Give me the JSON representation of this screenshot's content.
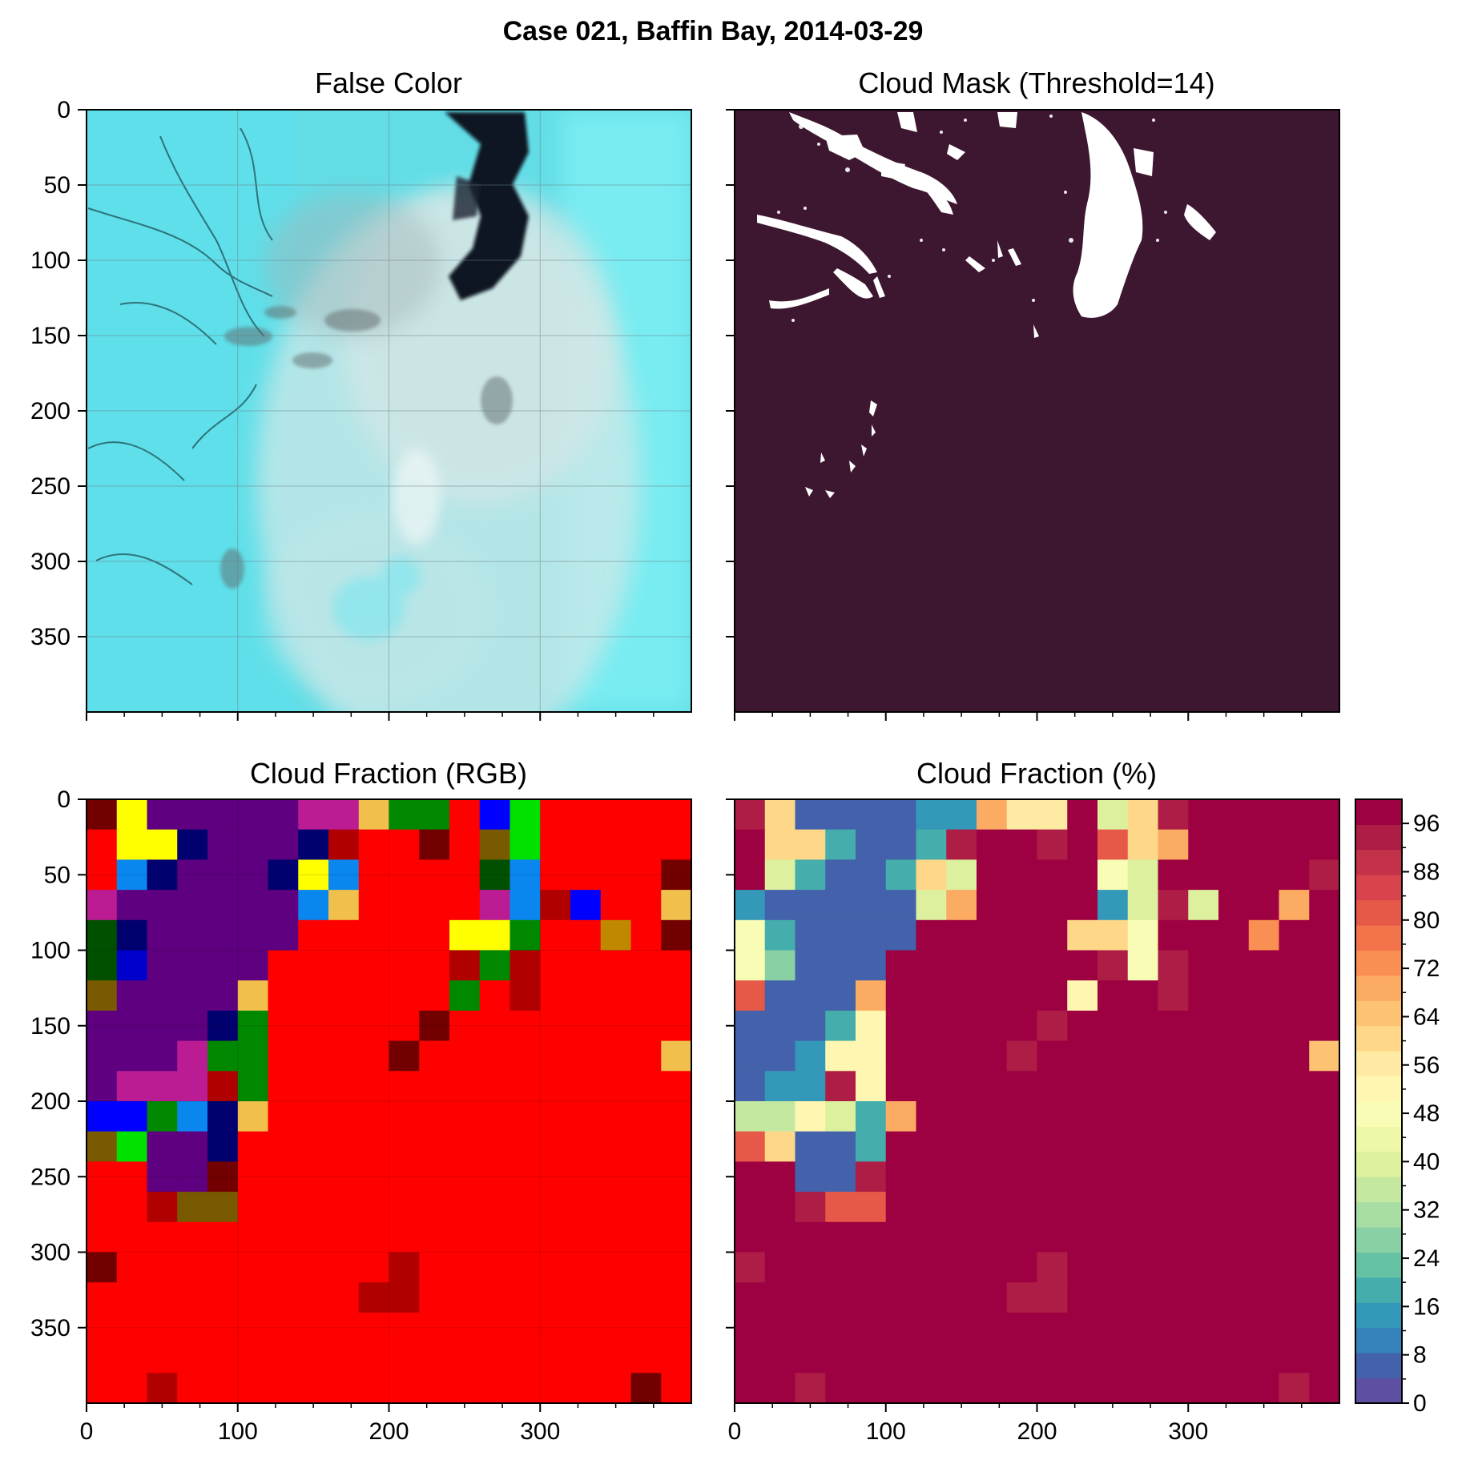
{
  "figure": {
    "suptitle": "Case 021, Baffin Bay, 2014-03-29"
  },
  "colors": {
    "mask_background": "#3d1730",
    "mask_cloud": "#ffffff",
    "grid": "#6b7f86"
  },
  "chart_data": [
    {
      "type": "heatmap",
      "panel": "top-left",
      "title": "False Color",
      "xlim": [
        0,
        400
      ],
      "ylim": [
        400,
        0
      ],
      "xticks": [
        0,
        100,
        200,
        300
      ],
      "yticks": [
        0,
        50,
        100,
        150,
        200,
        250,
        300,
        350
      ],
      "xtick_labels_shown": false,
      "ytick_labels_shown": true,
      "grid": true,
      "image": "false-color satellite composite (cyan sea ice, dark open water leads, white cloud)"
    },
    {
      "type": "heatmap",
      "panel": "top-right",
      "title": "Cloud Mask (Threshold=14)",
      "xlim": [
        0,
        400
      ],
      "ylim": [
        400,
        0
      ],
      "xticks": [
        0,
        100,
        200,
        300
      ],
      "yticks": [
        0,
        50,
        100,
        150,
        200,
        250,
        300,
        350
      ],
      "xtick_labels_shown": false,
      "ytick_labels_shown": false,
      "grid": false,
      "image": "binary mask: white = cloud, dark = clear"
    },
    {
      "type": "heatmap",
      "panel": "bottom-left",
      "title": "Cloud Fraction (RGB)",
      "xlim": [
        0,
        400
      ],
      "ylim": [
        400,
        0
      ],
      "xticks": [
        0,
        100,
        200,
        300
      ],
      "yticks": [
        0,
        50,
        100,
        150,
        200,
        250,
        300,
        350
      ],
      "xtick_labels_shown": true,
      "ytick_labels_shown": true,
      "grid": true,
      "block_size": 20,
      "palette": {
        "R": "#ff0000",
        "D": "#b10000",
        "K": "#730000",
        "P": "#5e007f",
        "N": "#00006f",
        "M": "#bb1c93",
        "Y": "#ffff00",
        "L": "#0a86ef",
        "G": "#008900",
        "B": "#0000ff",
        "E": "#00e100",
        "O": "#7a5a00",
        "S": "#f1bf4b",
        "H": "#005000",
        "Q": "#0000cc",
        "T": "#c08800"
      },
      "grid_rows": [
        "KYPPPPPMMSGGRBERRRRR",
        "RYYNPPPNDRRKROERRRRR",
        "RLNPPPNYLRRRRHLRRRRK",
        "MPPPPPPLSRRRRMLDBRRS",
        "HNPPPPPRRRRRYYGRRTRK",
        "HQPPPPRRRRRRDGDRRRRR",
        "OPPPPSRRRRRRGRDRRRRR",
        "PPPPNGRRRRRKRRRRRRRR",
        "PPPMGGRRRRKRRRRRRRRS",
        "PMMMDGRRRRRRRRRRRRRR",
        "BBGLNSRRRRRRRRRRRRRR",
        "OEPPNRRRRRRRRRRRRRRR",
        "RRPPKRRRRRRRRRRRRRRR",
        "RRDOORRRRRRRRRRRRRRR",
        "RRRRRRRRRRRRRRRRRRRR",
        "KRRRRRRRRRDRRRRRRRRR",
        "RRRRRRRRRDDRRRRRRRRR",
        "RRRRRRRRRRRRRRRRRRRR",
        "RRRRRRRRRRRRRRRRRRRR",
        "RRDRRRRRRRRRRRRRRRKR"
      ]
    },
    {
      "type": "heatmap",
      "panel": "bottom-right",
      "title": "Cloud Fraction (%)",
      "xlim": [
        0,
        400
      ],
      "ylim": [
        400,
        0
      ],
      "xticks": [
        0,
        100,
        200,
        300
      ],
      "yticks": [
        0,
        50,
        100,
        150,
        200,
        250,
        300,
        350
      ],
      "xtick_labels_shown": true,
      "ytick_labels_shown": false,
      "grid": false,
      "block_size": 20,
      "colormap": "Spectral_r (discrete, 4% steps)",
      "colorbar": {
        "range": [
          0,
          100
        ],
        "step": 4,
        "ticks": [
          0,
          8,
          16,
          24,
          32,
          40,
          48,
          56,
          64,
          72,
          80,
          88,
          96
        ],
        "colors": [
          "#5e4fa2",
          "#4461ab",
          "#3682ba",
          "#3498b8",
          "#45adab",
          "#65c2a5",
          "#89d1a4",
          "#a8dda4",
          "#c5e8a1",
          "#dcf09d",
          "#eff8a6",
          "#f8fcb5",
          "#fff7b1",
          "#feeaa2",
          "#fed888",
          "#fdc373",
          "#fcab62",
          "#f98f52",
          "#f3734b",
          "#e65847",
          "#d8434d",
          "#c43249",
          "#ad1d45",
          "#9e0142"
        ]
      },
      "values": [
        [
          88,
          56,
          4,
          4,
          4,
          4,
          12,
          12,
          64,
          52,
          52,
          100,
          36,
          56,
          90,
          100,
          100,
          100,
          100,
          100
        ],
        [
          100,
          58,
          58,
          16,
          4,
          4,
          16,
          90,
          100,
          100,
          88,
          100,
          76,
          56,
          64,
          100,
          100,
          100,
          100,
          100
        ],
        [
          100,
          36,
          16,
          4,
          4,
          16,
          58,
          36,
          100,
          100,
          100,
          100,
          46,
          36,
          100,
          100,
          100,
          100,
          100,
          90
        ],
        [
          12,
          4,
          4,
          4,
          4,
          4,
          36,
          64,
          100,
          100,
          100,
          100,
          12,
          36,
          88,
          36,
          100,
          100,
          64,
          100
        ],
        [
          46,
          16,
          4,
          4,
          4,
          4,
          100,
          100,
          100,
          100,
          100,
          58,
          58,
          46,
          100,
          100,
          100,
          68,
          100,
          94
        ],
        [
          46,
          24,
          4,
          4,
          4,
          100,
          100,
          100,
          100,
          100,
          100,
          100,
          90,
          46,
          90,
          100,
          100,
          100,
          100,
          100
        ],
        [
          78,
          4,
          4,
          4,
          64,
          100,
          100,
          100,
          100,
          100,
          100,
          50,
          100,
          100,
          90,
          100,
          100,
          100,
          100,
          100
        ],
        [
          4,
          4,
          4,
          16,
          50,
          100,
          100,
          100,
          100,
          100,
          88,
          100,
          100,
          100,
          100,
          100,
          100,
          100,
          100,
          100
        ],
        [
          4,
          4,
          12,
          50,
          50,
          100,
          100,
          100,
          100,
          88,
          100,
          100,
          100,
          100,
          100,
          100,
          100,
          100,
          100,
          62
        ],
        [
          4,
          12,
          12,
          90,
          50,
          100,
          100,
          100,
          100,
          100,
          100,
          100,
          100,
          100,
          100,
          100,
          100,
          100,
          100,
          100
        ],
        [
          32,
          32,
          48,
          36,
          16,
          64,
          100,
          100,
          100,
          100,
          100,
          100,
          100,
          100,
          100,
          100,
          100,
          100,
          100,
          100
        ],
        [
          76,
          56,
          4,
          4,
          16,
          100,
          100,
          100,
          100,
          100,
          100,
          100,
          100,
          100,
          100,
          100,
          100,
          100,
          100,
          100
        ],
        [
          100,
          100,
          4,
          4,
          88,
          100,
          100,
          100,
          100,
          100,
          100,
          100,
          100,
          100,
          100,
          100,
          100,
          100,
          100,
          100
        ],
        [
          100,
          100,
          88,
          78,
          78,
          100,
          100,
          100,
          100,
          100,
          100,
          100,
          100,
          100,
          100,
          100,
          100,
          100,
          100,
          100
        ],
        [
          100,
          100,
          100,
          100,
          100,
          100,
          100,
          100,
          100,
          100,
          100,
          100,
          100,
          100,
          100,
          100,
          100,
          100,
          100,
          100
        ],
        [
          88,
          100,
          100,
          100,
          100,
          100,
          100,
          100,
          100,
          100,
          88,
          100,
          100,
          100,
          100,
          100,
          100,
          100,
          100,
          100
        ],
        [
          100,
          100,
          100,
          100,
          100,
          100,
          100,
          100,
          100,
          88,
          88,
          100,
          100,
          100,
          100,
          100,
          100,
          100,
          100,
          100
        ],
        [
          100,
          100,
          100,
          100,
          100,
          100,
          100,
          100,
          100,
          100,
          100,
          100,
          100,
          100,
          100,
          100,
          100,
          100,
          100,
          100
        ],
        [
          100,
          100,
          100,
          100,
          100,
          100,
          100,
          100,
          100,
          100,
          100,
          100,
          100,
          100,
          100,
          100,
          100,
          100,
          100,
          100
        ],
        [
          100,
          100,
          88,
          100,
          100,
          100,
          100,
          100,
          100,
          100,
          100,
          100,
          100,
          100,
          100,
          100,
          100,
          100,
          88,
          100
        ]
      ]
    }
  ]
}
